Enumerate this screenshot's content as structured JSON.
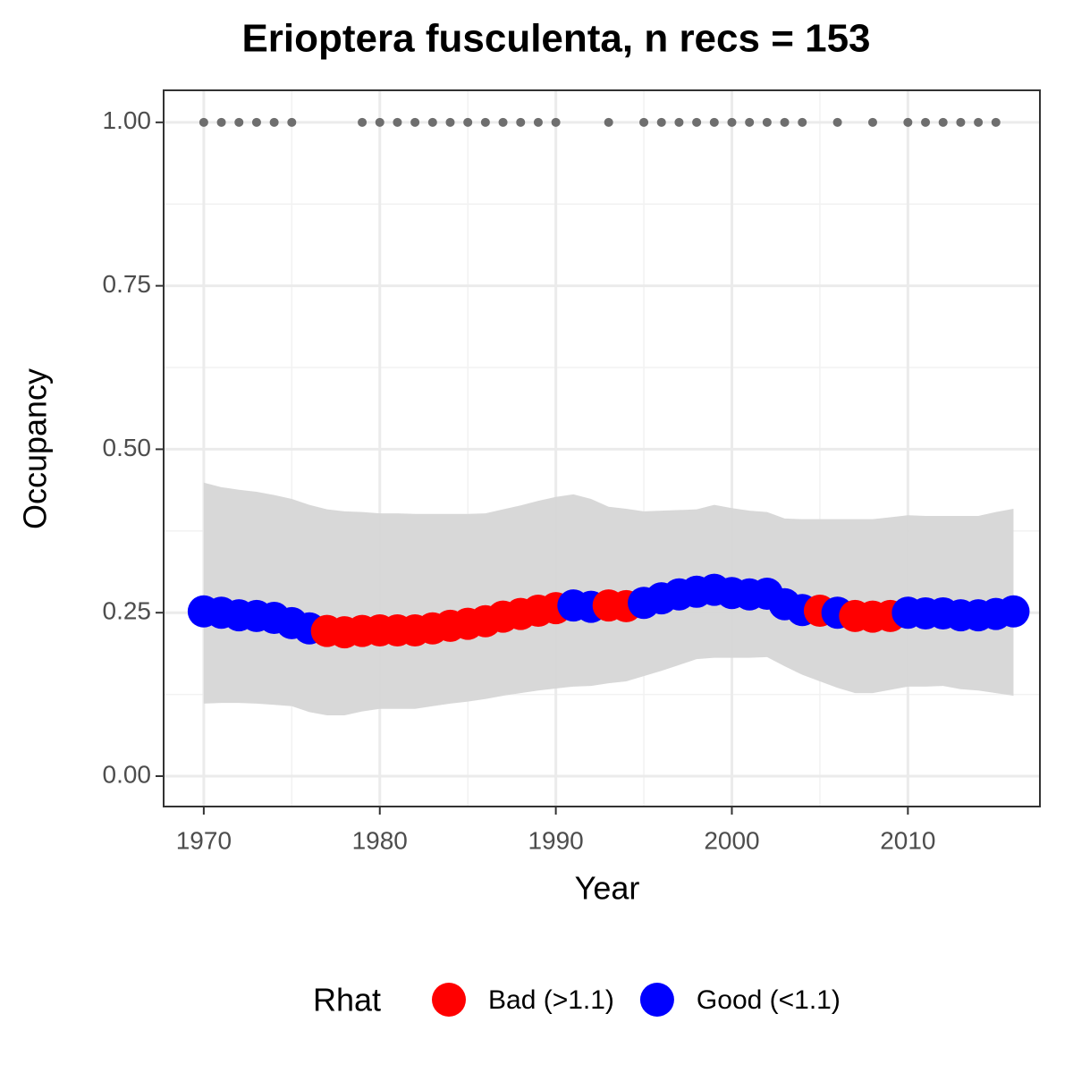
{
  "chart_data": {
    "type": "scatter",
    "title": "Erioptera fusculenta, n recs = 153",
    "x_label": "Year",
    "y_label": "Occupancy",
    "legend_title": "Rhat",
    "legend_position": "bottom",
    "grid": true,
    "xlim": [
      1967.72,
      2017.5
    ],
    "ylim": [
      -0.0465,
      1.049
    ],
    "xticks": [
      1970,
      1980,
      1990,
      2000,
      2010
    ],
    "yticks": [
      {
        "value": 0,
        "label": "0.00"
      },
      {
        "value": 0.25,
        "label": "0.25"
      },
      {
        "value": 0.5,
        "label": "0.50"
      },
      {
        "value": 0.75,
        "label": "0.75"
      },
      {
        "value": 1,
        "label": "1.00"
      }
    ],
    "x": [
      1970,
      1971,
      1972,
      1973,
      1974,
      1975,
      1976,
      1977,
      1978,
      1979,
      1980,
      1981,
      1982,
      1983,
      1984,
      1985,
      1986,
      1987,
      1988,
      1989,
      1990,
      1991,
      1992,
      1993,
      1994,
      1995,
      1996,
      1997,
      1998,
      1999,
      2000,
      2001,
      2002,
      2003,
      2004,
      2005,
      2006,
      2007,
      2008,
      2009,
      2010,
      2011,
      2012,
      2013,
      2014,
      2015,
      2016
    ],
    "ribbon_color": "#d6d6d6",
    "upper": [
      0.449,
      0.442,
      0.438,
      0.435,
      0.43,
      0.424,
      0.415,
      0.408,
      0.405,
      0.404,
      0.402,
      0.402,
      0.401,
      0.401,
      0.401,
      0.401,
      0.402,
      0.408,
      0.414,
      0.421,
      0.427,
      0.431,
      0.424,
      0.412,
      0.409,
      0.405,
      0.406,
      0.407,
      0.408,
      0.415,
      0.41,
      0.406,
      0.404,
      0.394,
      0.393,
      0.393,
      0.393,
      0.393,
      0.393,
      0.396,
      0.399,
      0.398,
      0.398,
      0.398,
      0.398,
      0.404,
      0.409
    ],
    "lower": [
      0.111,
      0.112,
      0.112,
      0.111,
      0.109,
      0.107,
      0.098,
      0.093,
      0.093,
      0.099,
      0.103,
      0.103,
      0.103,
      0.107,
      0.111,
      0.114,
      0.118,
      0.123,
      0.127,
      0.131,
      0.134,
      0.137,
      0.138,
      0.142,
      0.145,
      0.153,
      0.161,
      0.17,
      0.179,
      0.181,
      0.181,
      0.181,
      0.182,
      0.168,
      0.155,
      0.145,
      0.135,
      0.127,
      0.127,
      0.132,
      0.137,
      0.137,
      0.138,
      0.133,
      0.131,
      0.127,
      0.123
    ],
    "series": [
      {
        "name": "Bad (>1.1)",
        "color": "#ff0000",
        "values": [
          null,
          null,
          null,
          null,
          null,
          null,
          null,
          0.222,
          0.22,
          0.222,
          0.223,
          0.223,
          0.223,
          0.226,
          0.23,
          0.233,
          0.237,
          0.244,
          0.248,
          0.253,
          0.257,
          null,
          null,
          0.261,
          0.26,
          null,
          null,
          null,
          null,
          null,
          null,
          null,
          null,
          null,
          null,
          0.253,
          null,
          0.245,
          0.244,
          0.245,
          null,
          null,
          null,
          null,
          null,
          null,
          null
        ]
      },
      {
        "name": "Good (<1.1)",
        "color": "#0000ff",
        "values": [
          0.252,
          0.25,
          0.246,
          0.245,
          0.242,
          0.234,
          0.226,
          null,
          null,
          null,
          null,
          null,
          null,
          null,
          null,
          null,
          null,
          null,
          null,
          null,
          null,
          0.261,
          0.259,
          null,
          null,
          0.265,
          0.272,
          0.278,
          0.282,
          0.285,
          0.28,
          0.278,
          0.279,
          0.263,
          0.254,
          null,
          0.25,
          null,
          null,
          null,
          0.25,
          0.249,
          0.249,
          0.246,
          0.246,
          0.248,
          0.252
        ]
      }
    ],
    "records": {
      "color": "#6e6e6e",
      "x": [
        1970,
        1971,
        1972,
        1973,
        1974,
        1975,
        1979,
        1980,
        1981,
        1982,
        1983,
        1984,
        1985,
        1986,
        1987,
        1988,
        1989,
        1990,
        1993,
        1995,
        1996,
        1997,
        1998,
        1999,
        2000,
        2001,
        2002,
        2003,
        2004,
        2006,
        2008,
        2010,
        2011,
        2012,
        2013,
        2014,
        2015
      ],
      "values": [
        1,
        1,
        1,
        1,
        1,
        1,
        1,
        1,
        1,
        1,
        1,
        1,
        1,
        1,
        1,
        1,
        1,
        1,
        1,
        1,
        1,
        1,
        1,
        1,
        1,
        1,
        1,
        1,
        1,
        1,
        1,
        1,
        1,
        1,
        1,
        1,
        1
      ]
    }
  }
}
